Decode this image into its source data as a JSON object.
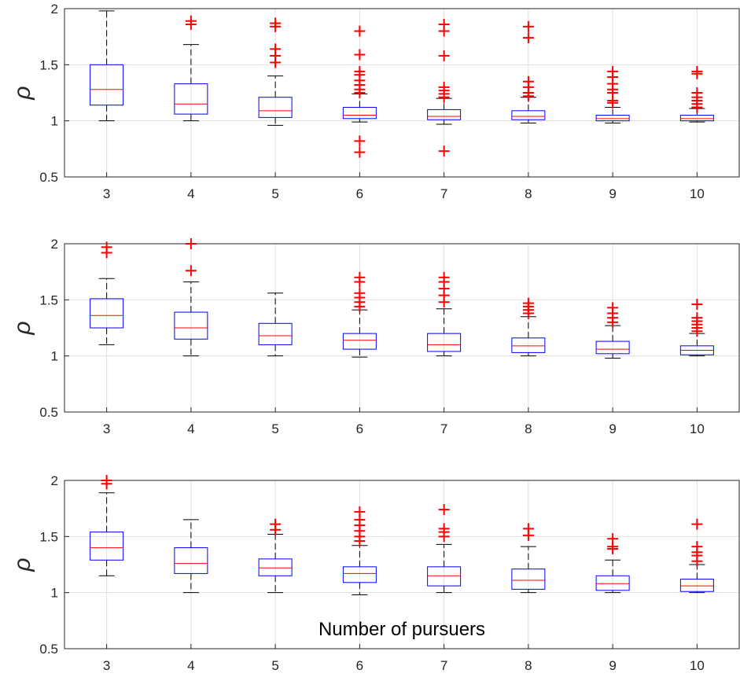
{
  "figure": {
    "xlabel": "Number of pursuers"
  },
  "colors": {
    "box": "#0000ff",
    "median": "#ff0000",
    "outlier": "#ff0000",
    "whisker": "#000000",
    "grid": "#dfdfdf",
    "axis": "#262626"
  },
  "chart_data": [
    {
      "type": "box",
      "categories": [
        "3",
        "4",
        "5",
        "6",
        "7",
        "8",
        "9",
        "10"
      ],
      "ylabel": "ρ",
      "xlabel": "",
      "ylim": [
        0.5,
        2
      ],
      "yticks": [
        "0.5",
        "1",
        "1.5",
        "2"
      ],
      "grid": true,
      "boxes": [
        {
          "x": "3",
          "whisker_low": 1.0,
          "q1": 1.14,
          "median": 1.28,
          "q3": 1.5,
          "whisker_high": 1.98,
          "outliers": []
        },
        {
          "x": "4",
          "whisker_low": 1.0,
          "q1": 1.06,
          "median": 1.15,
          "q3": 1.33,
          "whisker_high": 1.68,
          "outliers": [
            1.86,
            1.89
          ]
        },
        {
          "x": "5",
          "whisker_low": 0.96,
          "q1": 1.03,
          "median": 1.09,
          "q3": 1.21,
          "whisker_high": 1.4,
          "outliers": [
            1.52,
            1.58,
            1.64,
            1.84,
            1.87
          ]
        },
        {
          "x": "6",
          "whisker_low": 0.99,
          "q1": 1.02,
          "median": 1.05,
          "q3": 1.12,
          "whisker_high": 1.24,
          "outliers": [
            0.72,
            0.82,
            1.25,
            1.28,
            1.32,
            1.36,
            1.41,
            1.44,
            1.59,
            1.8
          ]
        },
        {
          "x": "7",
          "whisker_low": 0.97,
          "q1": 1.01,
          "median": 1.04,
          "q3": 1.1,
          "whisker_high": 1.2,
          "outliers": [
            0.73,
            1.21,
            1.24,
            1.27,
            1.3,
            1.58,
            1.8,
            1.86
          ]
        },
        {
          "x": "8",
          "whisker_low": 0.98,
          "q1": 1.01,
          "median": 1.04,
          "q3": 1.09,
          "whisker_high": 1.21,
          "outliers": [
            1.22,
            1.25,
            1.3,
            1.35,
            1.74,
            1.84
          ]
        },
        {
          "x": "9",
          "whisker_low": 0.98,
          "q1": 1.0,
          "median": 1.02,
          "q3": 1.05,
          "whisker_high": 1.12,
          "outliers": [
            1.16,
            1.18,
            1.25,
            1.28,
            1.33,
            1.39,
            1.44
          ]
        },
        {
          "x": "10",
          "whisker_low": 0.99,
          "q1": 1.0,
          "median": 1.02,
          "q3": 1.05,
          "whisker_high": 1.11,
          "outliers": [
            1.12,
            1.15,
            1.18,
            1.21,
            1.25,
            1.42,
            1.44
          ]
        }
      ]
    },
    {
      "type": "box",
      "categories": [
        "3",
        "4",
        "5",
        "6",
        "7",
        "8",
        "9",
        "10"
      ],
      "ylabel": "ρ",
      "xlabel": "",
      "ylim": [
        0.5,
        2
      ],
      "yticks": [
        "0.5",
        "1",
        "1.5",
        "2"
      ],
      "grid": true,
      "boxes": [
        {
          "x": "3",
          "whisker_low": 1.1,
          "q1": 1.25,
          "median": 1.36,
          "q3": 1.51,
          "whisker_high": 1.69,
          "outliers": [
            1.92,
            1.97
          ]
        },
        {
          "x": "4",
          "whisker_low": 1.0,
          "q1": 1.15,
          "median": 1.25,
          "q3": 1.39,
          "whisker_high": 1.66,
          "outliers": [
            1.76,
            2.0
          ]
        },
        {
          "x": "5",
          "whisker_low": 1.0,
          "q1": 1.1,
          "median": 1.18,
          "q3": 1.29,
          "whisker_high": 1.56,
          "outliers": []
        },
        {
          "x": "6",
          "whisker_low": 0.99,
          "q1": 1.06,
          "median": 1.14,
          "q3": 1.2,
          "whisker_high": 1.41,
          "outliers": [
            1.44,
            1.48,
            1.52,
            1.56,
            1.66,
            1.7
          ]
        },
        {
          "x": "7",
          "whisker_low": 1.0,
          "q1": 1.04,
          "median": 1.1,
          "q3": 1.2,
          "whisker_high": 1.42,
          "outliers": [
            1.48,
            1.54,
            1.6,
            1.66,
            1.7
          ]
        },
        {
          "x": "8",
          "whisker_low": 1.0,
          "q1": 1.03,
          "median": 1.09,
          "q3": 1.16,
          "whisker_high": 1.35,
          "outliers": [
            1.38,
            1.41,
            1.44,
            1.47
          ]
        },
        {
          "x": "9",
          "whisker_low": 0.98,
          "q1": 1.02,
          "median": 1.06,
          "q3": 1.13,
          "whisker_high": 1.27,
          "outliers": [
            1.3,
            1.34,
            1.38,
            1.43
          ]
        },
        {
          "x": "10",
          "whisker_low": 1.0,
          "q1": 1.01,
          "median": 1.05,
          "q3": 1.09,
          "whisker_high": 1.2,
          "outliers": [
            1.22,
            1.25,
            1.28,
            1.31,
            1.34,
            1.46
          ]
        }
      ]
    },
    {
      "type": "box",
      "categories": [
        "3",
        "4",
        "5",
        "6",
        "7",
        "8",
        "9",
        "10"
      ],
      "ylabel": "ρ",
      "xlabel": "Number of pursuers",
      "ylim": [
        0.5,
        2
      ],
      "yticks": [
        "0.5",
        "1",
        "1.5",
        "2"
      ],
      "grid": true,
      "boxes": [
        {
          "x": "3",
          "whisker_low": 1.15,
          "q1": 1.29,
          "median": 1.4,
          "q3": 1.54,
          "whisker_high": 1.89,
          "outliers": [
            1.97,
            2.0
          ]
        },
        {
          "x": "4",
          "whisker_low": 1.0,
          "q1": 1.17,
          "median": 1.26,
          "q3": 1.4,
          "whisker_high": 1.65,
          "outliers": []
        },
        {
          "x": "5",
          "whisker_low": 1.0,
          "q1": 1.15,
          "median": 1.22,
          "q3": 1.3,
          "whisker_high": 1.52,
          "outliers": [
            1.56,
            1.61
          ]
        },
        {
          "x": "6",
          "whisker_low": 0.98,
          "q1": 1.09,
          "median": 1.17,
          "q3": 1.23,
          "whisker_high": 1.42,
          "outliers": [
            1.46,
            1.5,
            1.55,
            1.6,
            1.65,
            1.72
          ]
        },
        {
          "x": "7",
          "whisker_low": 1.0,
          "q1": 1.06,
          "median": 1.15,
          "q3": 1.23,
          "whisker_high": 1.43,
          "outliers": [
            1.5,
            1.54,
            1.57,
            1.74
          ]
        },
        {
          "x": "8",
          "whisker_low": 1.0,
          "q1": 1.03,
          "median": 1.11,
          "q3": 1.21,
          "whisker_high": 1.41,
          "outliers": [
            1.51,
            1.57
          ]
        },
        {
          "x": "9",
          "whisker_low": 1.0,
          "q1": 1.02,
          "median": 1.08,
          "q3": 1.15,
          "whisker_high": 1.29,
          "outliers": [
            1.39,
            1.41,
            1.48
          ]
        },
        {
          "x": "10",
          "whisker_low": 1.0,
          "q1": 1.01,
          "median": 1.06,
          "q3": 1.12,
          "whisker_high": 1.25,
          "outliers": [
            1.28,
            1.33,
            1.36,
            1.41,
            1.61
          ]
        }
      ]
    }
  ]
}
